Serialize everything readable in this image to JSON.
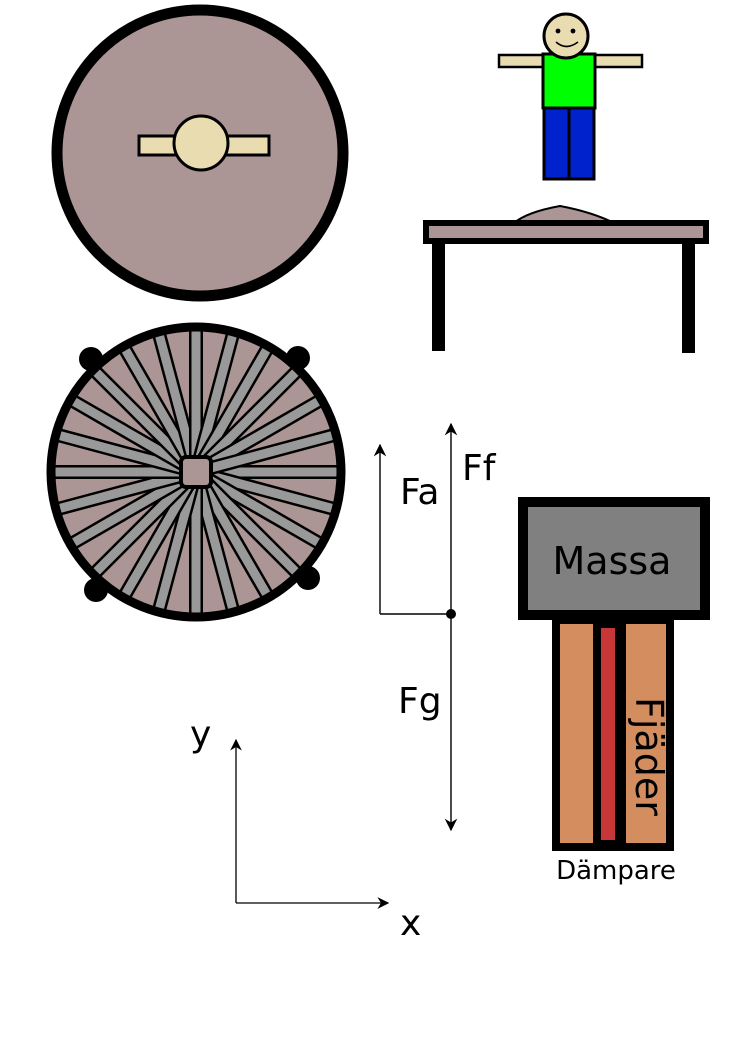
{
  "labels": {
    "fa": "Fa",
    "ff": "Ff",
    "fg": "Fg",
    "massa": "Massa",
    "fjader": "Fjäder",
    "dampare": "Dämpare",
    "axis_x": "x",
    "axis_y": "y"
  },
  "colors": {
    "disc": "#ab9595",
    "hub": "#e8dcb0",
    "spoke": "#999999",
    "shirt": "#00ff00",
    "pants": "#0022cc",
    "mass": "#808080",
    "spring": "#d38d5f",
    "damper": "#c83737",
    "outline": "#000000"
  },
  "wheel": {
    "spoke_count": 24
  }
}
